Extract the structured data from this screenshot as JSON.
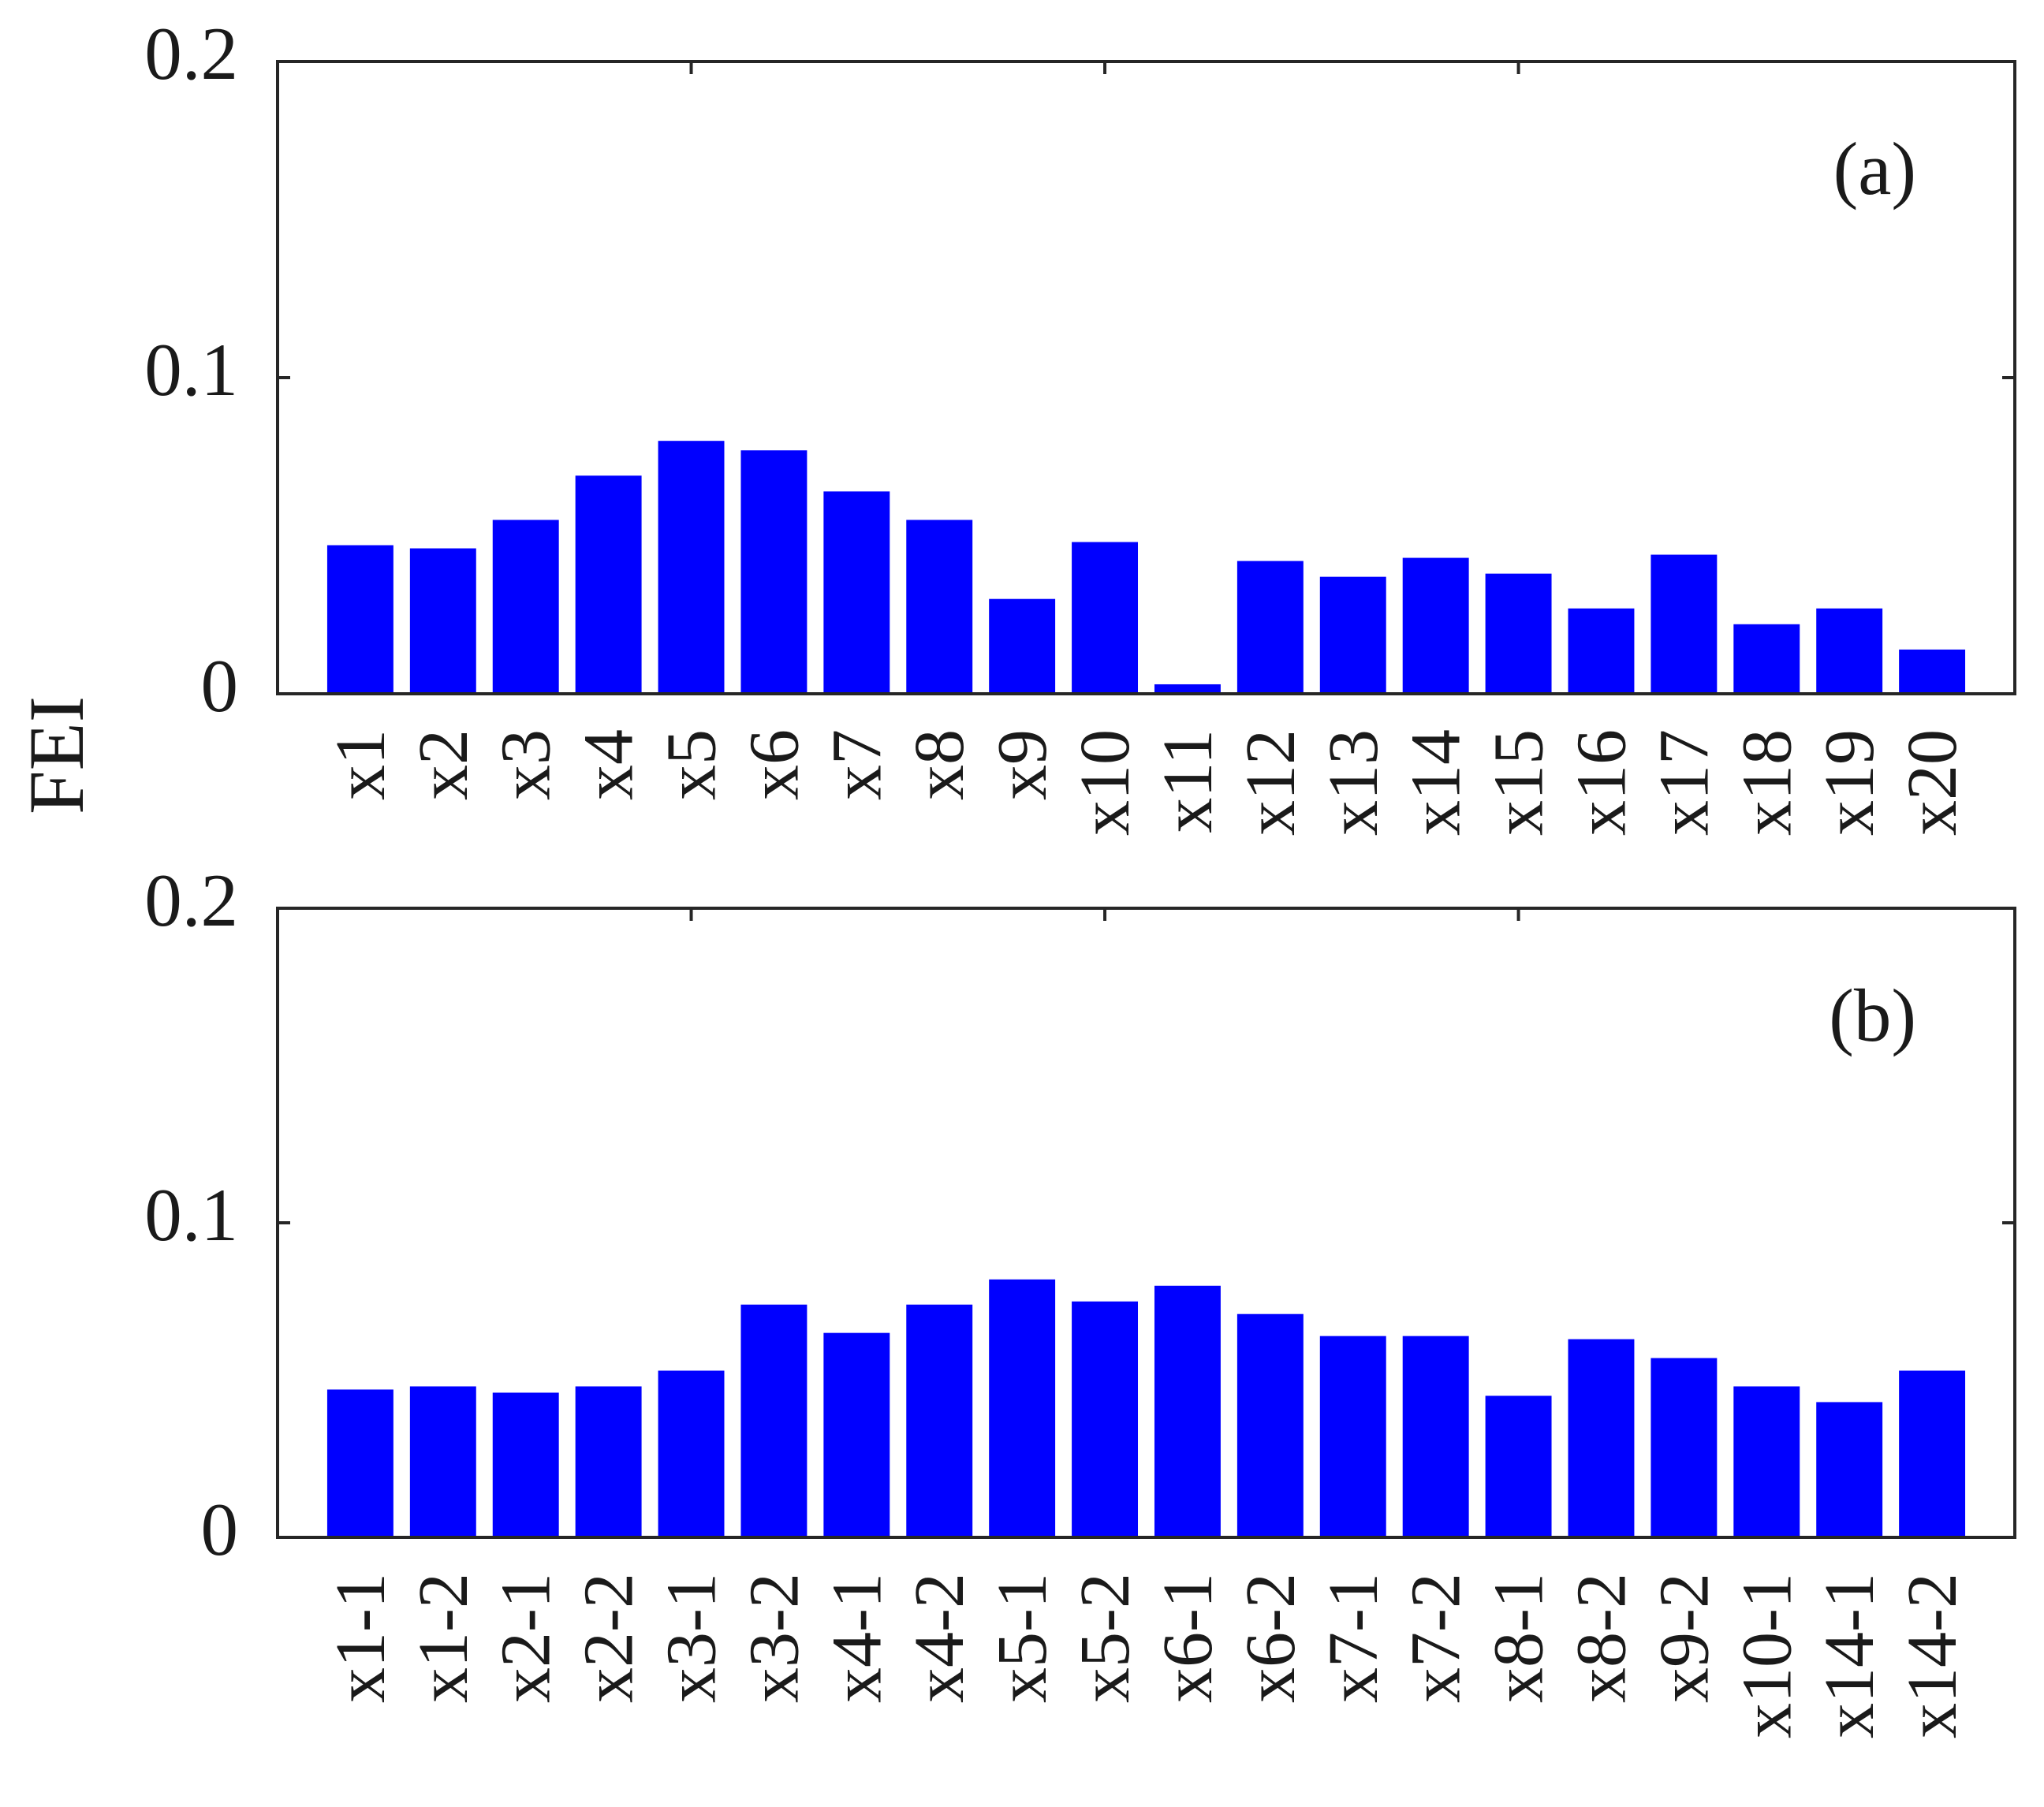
{
  "chart_data": [
    {
      "type": "bar",
      "panel_label": "(a)",
      "ylabel": "FEI",
      "ylim": [
        0,
        0.2
      ],
      "yticks": [
        "0",
        "0.1",
        "0.2"
      ],
      "bar_color": "#0000ff",
      "categories": [
        "x1",
        "x2",
        "x3",
        "x4",
        "x5",
        "x6",
        "x7",
        "x8",
        "x9",
        "x10",
        "x11",
        "x12",
        "x13",
        "x14",
        "x15",
        "x16",
        "x17",
        "x18",
        "x19",
        "x20"
      ],
      "values": [
        0.047,
        0.046,
        0.055,
        0.069,
        0.08,
        0.077,
        0.064,
        0.055,
        0.03,
        0.048,
        0.003,
        0.042,
        0.037,
        0.043,
        0.038,
        0.027,
        0.044,
        0.022,
        0.027,
        0.014
      ]
    },
    {
      "type": "bar",
      "panel_label": "(b)",
      "ylim": [
        0,
        0.2
      ],
      "yticks": [
        "0",
        "0.1",
        "0.2"
      ],
      "bar_color": "#0000ff",
      "categories": [
        "x1-1",
        "x1-2",
        "x2-1",
        "x2-2",
        "x3-1",
        "x3-2",
        "x4-1",
        "x4-2",
        "x5-1",
        "x5-2",
        "x6-1",
        "x6-2",
        "x7-1",
        "x7-2",
        "x8-1",
        "x8-2",
        "x9-2",
        "x10-1",
        "x14-1",
        "x14-2"
      ],
      "values": [
        0.047,
        0.048,
        0.046,
        0.048,
        0.053,
        0.074,
        0.065,
        0.074,
        0.082,
        0.075,
        0.08,
        0.071,
        0.064,
        0.064,
        0.045,
        0.063,
        0.057,
        0.048,
        0.043,
        0.053
      ]
    }
  ]
}
